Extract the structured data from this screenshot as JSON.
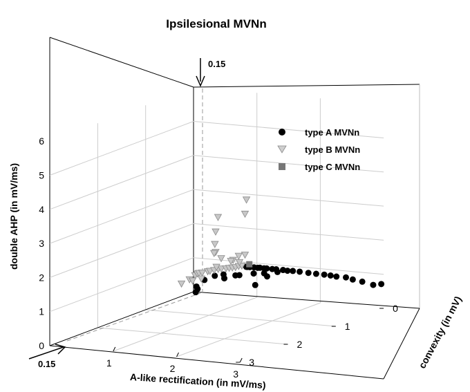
{
  "chart_data": {
    "type": "scatter",
    "title": "Ipsilesional MVNn",
    "xlabel": "A-like rectification  (in mV/ms)",
    "ylabel": "double AHP (in mV/ms)",
    "zlabel": "convexity (in mV)",
    "x_ticks": [
      "1",
      "2",
      "3"
    ],
    "y_ticks": [
      "0",
      "1",
      "2",
      "3",
      "4",
      "5",
      "6"
    ],
    "z_ticks": [
      "0",
      "1",
      "2",
      "3"
    ],
    "xlim": [
      0,
      3
    ],
    "ylim": [
      0,
      6
    ],
    "zlim": [
      0,
      3
    ],
    "grid": true,
    "legend_position": "right",
    "annotations": [
      {
        "text": "0.15",
        "axis": "convexity",
        "value": 0.15
      },
      {
        "text": "0.15",
        "axis": "A-like rectification",
        "value": 0.15
      }
    ],
    "series": [
      {
        "name": "type A MVNn",
        "marker": "circle",
        "color": "#000000",
        "points": [
          [
            0.87,
            0.9,
            0.05
          ],
          [
            0.9,
            0.91,
            0.07
          ],
          [
            0.95,
            0.92,
            0.08
          ],
          [
            1.0,
            0.91,
            0.06
          ],
          [
            1.05,
            0.9,
            0.05
          ],
          [
            1.1,
            0.92,
            0.07
          ],
          [
            1.15,
            0.9,
            0.05
          ],
          [
            1.2,
            0.91,
            0.06
          ],
          [
            1.28,
            0.9,
            0.05
          ],
          [
            1.35,
            0.91,
            0.06
          ],
          [
            1.45,
            0.9,
            0.05
          ],
          [
            1.52,
            0.89,
            0.05
          ],
          [
            1.62,
            0.91,
            0.07
          ],
          [
            1.72,
            0.9,
            0.06
          ],
          [
            1.85,
            0.88,
            0.05
          ],
          [
            1.98,
            0.88,
            0.06
          ],
          [
            2.1,
            0.87,
            0.05
          ],
          [
            2.2,
            0.86,
            0.05
          ],
          [
            2.3,
            0.85,
            0.06
          ],
          [
            2.45,
            0.85,
            0.06
          ],
          [
            2.55,
            0.8,
            0.05
          ],
          [
            2.7,
            0.76,
            0.05
          ],
          [
            2.88,
            0.7,
            0.06
          ],
          [
            3.0,
            0.74,
            0.05
          ],
          [
            1.1,
            0.82,
            0.2
          ],
          [
            1.25,
            0.84,
            0.18
          ],
          [
            1.35,
            0.8,
            0.25
          ],
          [
            1.2,
            0.55,
            0.3
          ],
          [
            0.95,
            0.8,
            0.3
          ],
          [
            0.85,
            0.75,
            0.25
          ],
          [
            0.7,
            0.78,
            0.3
          ],
          [
            0.75,
            0.7,
            0.35
          ],
          [
            0.55,
            0.7,
            0.5
          ],
          [
            0.5,
            0.55,
            0.6
          ],
          [
            0.48,
            0.45,
            0.55
          ],
          [
            0.45,
            0.35,
            0.55
          ],
          [
            0.6,
            0.75,
            0.35
          ],
          [
            1.4,
            0.86,
            0.1
          ]
        ]
      },
      {
        "name": "type B MVNn",
        "marker": "triangle-down",
        "color": "#c8c8c8",
        "points": [
          [
            0.05,
            0.45,
            0.15
          ],
          [
            0.1,
            0.55,
            0.1
          ],
          [
            0.15,
            0.62,
            0.12
          ],
          [
            0.2,
            0.66,
            0.15
          ],
          [
            0.25,
            0.68,
            0.15
          ],
          [
            0.3,
            0.7,
            0.1
          ],
          [
            0.35,
            0.73,
            0.12
          ],
          [
            0.4,
            0.75,
            0.1
          ],
          [
            0.45,
            0.78,
            0.08
          ],
          [
            0.5,
            0.8,
            0.08
          ],
          [
            0.55,
            0.8,
            0.05
          ],
          [
            0.6,
            0.82,
            0.05
          ],
          [
            0.65,
            0.84,
            0.05
          ],
          [
            0.7,
            0.86,
            0.05
          ],
          [
            0.75,
            0.9,
            0.05
          ],
          [
            0.8,
            0.92,
            0.05
          ],
          [
            0.8,
            1.05,
            0.1
          ],
          [
            0.75,
            1.2,
            0.05
          ],
          [
            0.85,
            1.25,
            0.05
          ],
          [
            0.7,
            1.1,
            0.1
          ],
          [
            0.55,
            1.15,
            0.15
          ],
          [
            0.5,
            1.35,
            0.2
          ],
          [
            0.45,
            1.55,
            0.15
          ],
          [
            0.5,
            1.95,
            0.2
          ],
          [
            0.5,
            2.35,
            0.15
          ],
          [
            0.85,
            2.45,
            0.05
          ],
          [
            0.85,
            2.85,
            0.02
          ],
          [
            0.55,
            0.95,
            0.25
          ],
          [
            0.35,
            0.6,
            0.3
          ],
          [
            0.25,
            0.55,
            0.35
          ],
          [
            0.15,
            0.5,
            0.45
          ],
          [
            0.4,
            1.25,
            0.1
          ],
          [
            0.65,
            1.05,
            0.08
          ]
        ]
      },
      {
        "name": "type C MVNn",
        "marker": "square",
        "color": "#777777",
        "points": [
          [
            0.88,
            0.95,
            0.0
          ]
        ]
      }
    ]
  }
}
